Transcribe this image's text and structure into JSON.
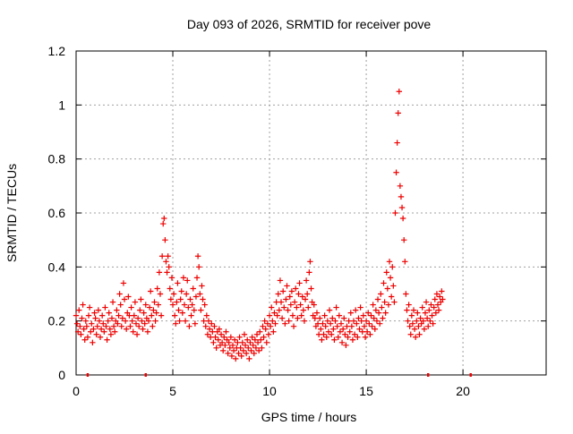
{
  "chart_data": {
    "type": "scatter",
    "title": "Day 093 of 2026, SRMTID for receiver pove",
    "xlabel": "GPS time / hours",
    "ylabel": "SRMTID / TECUs",
    "xlim": [
      0,
      24.3
    ],
    "ylim": [
      0,
      1.2
    ],
    "x_ticks": [
      0,
      5,
      10,
      15,
      20
    ],
    "x_tick_labels": [
      "0",
      "5",
      "10",
      "15",
      "20"
    ],
    "y_ticks": [
      0,
      0.2,
      0.4,
      0.6,
      0.8,
      1.0,
      1.2
    ],
    "y_tick_labels": [
      "0",
      "0.2",
      "0.4",
      "0.6",
      "0.8",
      "1",
      "1.2"
    ],
    "grid": true,
    "marker": "plus",
    "color": "#ee0000",
    "baseline_marks_x": [
      0.6,
      3.6,
      18.2,
      20.4
    ],
    "series": [
      {
        "name": "SRMTID",
        "x_start": 0.0,
        "x_step": 0.05,
        "values": [
          0.22,
          0.19,
          0.16,
          0.24,
          0.18,
          0.15,
          0.21,
          0.26,
          0.17,
          0.13,
          0.2,
          0.18,
          0.14,
          0.22,
          0.25,
          0.16,
          0.19,
          0.12,
          0.17,
          0.23,
          0.21,
          0.15,
          0.18,
          0.24,
          0.2,
          0.14,
          0.17,
          0.22,
          0.19,
          0.16,
          0.25,
          0.18,
          0.13,
          0.2,
          0.23,
          0.17,
          0.15,
          0.21,
          0.27,
          0.18,
          0.16,
          0.2,
          0.24,
          0.19,
          0.22,
          0.3,
          0.26,
          0.18,
          0.21,
          0.34,
          0.28,
          0.2,
          0.17,
          0.23,
          0.29,
          0.22,
          0.18,
          0.25,
          0.2,
          0.16,
          0.22,
          0.27,
          0.19,
          0.15,
          0.21,
          0.18,
          0.24,
          0.28,
          0.2,
          0.17,
          0.23,
          0.19,
          0.26,
          0.21,
          0.16,
          0.2,
          0.25,
          0.31,
          0.22,
          0.18,
          0.24,
          0.27,
          0.2,
          0.23,
          0.32,
          0.26,
          0.38,
          0.3,
          0.22,
          0.44,
          0.56,
          0.58,
          0.5,
          0.42,
          0.38,
          0.44,
          0.4,
          0.32,
          0.28,
          0.36,
          0.26,
          0.3,
          0.22,
          0.19,
          0.27,
          0.34,
          0.24,
          0.2,
          0.28,
          0.31,
          0.23,
          0.36,
          0.26,
          0.2,
          0.3,
          0.35,
          0.25,
          0.18,
          0.28,
          0.22,
          0.26,
          0.32,
          0.24,
          0.19,
          0.29,
          0.36,
          0.44,
          0.4,
          0.3,
          0.24,
          0.33,
          0.28,
          0.2,
          0.26,
          0.18,
          0.22,
          0.15,
          0.2,
          0.17,
          0.14,
          0.19,
          0.16,
          0.12,
          0.18,
          0.14,
          0.1,
          0.16,
          0.13,
          0.17,
          0.11,
          0.15,
          0.12,
          0.09,
          0.14,
          0.11,
          0.16,
          0.13,
          0.08,
          0.12,
          0.1,
          0.14,
          0.07,
          0.11,
          0.09,
          0.13,
          0.06,
          0.1,
          0.12,
          0.08,
          0.14,
          0.1,
          0.07,
          0.12,
          0.09,
          0.15,
          0.11,
          0.08,
          0.13,
          0.1,
          0.06,
          0.12,
          0.09,
          0.14,
          0.11,
          0.08,
          0.13,
          0.1,
          0.15,
          0.12,
          0.09,
          0.16,
          0.13,
          0.1,
          0.18,
          0.14,
          0.2,
          0.17,
          0.12,
          0.19,
          0.15,
          0.22,
          0.18,
          0.25,
          0.2,
          0.16,
          0.23,
          0.19,
          0.27,
          0.22,
          0.3,
          0.24,
          0.35,
          0.27,
          0.21,
          0.31,
          0.25,
          0.19,
          0.28,
          0.33,
          0.24,
          0.2,
          0.29,
          0.26,
          0.31,
          0.22,
          0.18,
          0.27,
          0.32,
          0.25,
          0.21,
          0.3,
          0.34,
          0.26,
          0.22,
          0.29,
          0.24,
          0.2,
          0.28,
          0.35,
          0.3,
          0.25,
          0.38,
          0.42,
          0.32,
          0.27,
          0.22,
          0.26,
          0.21,
          0.18,
          0.23,
          0.19,
          0.15,
          0.21,
          0.17,
          0.13,
          0.19,
          0.15,
          0.22,
          0.18,
          0.14,
          0.2,
          0.16,
          0.24,
          0.19,
          0.15,
          0.21,
          0.17,
          0.13,
          0.2,
          0.25,
          0.18,
          0.14,
          0.22,
          0.16,
          0.19,
          0.12,
          0.17,
          0.21,
          0.15,
          0.11,
          0.18,
          0.14,
          0.2,
          0.16,
          0.23,
          0.18,
          0.13,
          0.2,
          0.15,
          0.24,
          0.19,
          0.14,
          0.21,
          0.17,
          0.25,
          0.2,
          0.16,
          0.22,
          0.18,
          0.14,
          0.2,
          0.16,
          0.23,
          0.19,
          0.15,
          0.22,
          0.18,
          0.26,
          0.21,
          0.17,
          0.24,
          0.2,
          0.28,
          0.23,
          0.19,
          0.3,
          0.25,
          0.21,
          0.34,
          0.27,
          0.23,
          0.38,
          0.32,
          0.26,
          0.42,
          0.36,
          0.29,
          0.4,
          0.33,
          0.27,
          0.6,
          0.75,
          0.86,
          0.97,
          1.05,
          0.7,
          0.66,
          0.62,
          0.58,
          0.5,
          0.42,
          0.3,
          0.24,
          0.2,
          0.26,
          0.18,
          0.15,
          0.22,
          0.19,
          0.24,
          0.17,
          0.14,
          0.2,
          0.23,
          0.18,
          0.15,
          0.21,
          0.19,
          0.25,
          0.2,
          0.17,
          0.23,
          0.27,
          0.21,
          0.18,
          0.24,
          0.2,
          0.26,
          0.22,
          0.19,
          0.25,
          0.28,
          0.23,
          0.3,
          0.26,
          0.24,
          0.29,
          0.27,
          0.31,
          0.28
        ]
      }
    ]
  }
}
